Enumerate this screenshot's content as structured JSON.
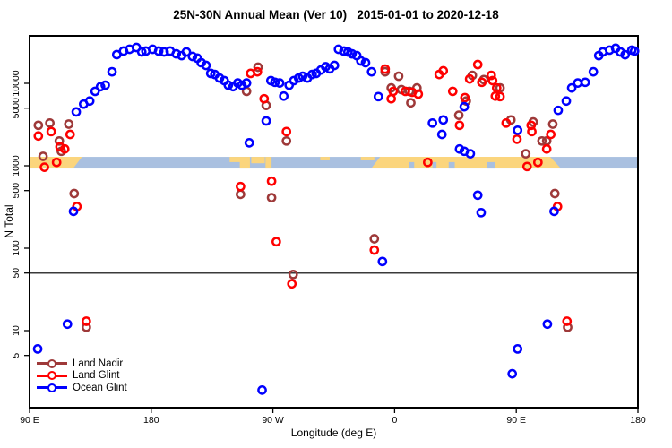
{
  "title": "25N-30N Annual Mean (Ver 10)   2015-01-01 to 2020-12-18",
  "axes": {
    "x": {
      "label": "Longitude (deg E)",
      "range_deg": [
        90,
        540
      ],
      "ticks": [
        {
          "deg": 90,
          "label": "90 E"
        },
        {
          "deg": 180,
          "label": "180"
        },
        {
          "deg": 270,
          "label": "90 W"
        },
        {
          "deg": 360,
          "label": "0"
        },
        {
          "deg": 450,
          "label": "90 E"
        },
        {
          "deg": 540,
          "label": "180"
        }
      ]
    },
    "y": {
      "label": "N Total",
      "scale": "log10",
      "ticks": [
        5,
        10,
        50,
        100,
        500,
        1000,
        5000,
        10000
      ],
      "range": [
        1.2,
        38000
      ]
    }
  },
  "reference_line": {
    "value": 50,
    "color": "#3a3a3a"
  },
  "land_ocean_strip": {
    "description": "map strip of land vs ocean along 25N-30N, centered near N=1090",
    "center_value": 1090,
    "ocean_color": "#a9c0e0",
    "land_color": "#fbd57d",
    "land_segments": [
      {
        "from": 90,
        "to": 125.5,
        "part": 1,
        "slant": "right"
      },
      {
        "from": 238,
        "to": 247,
        "part": 0.45,
        "slant": "none"
      },
      {
        "from": 245.5,
        "to": 253,
        "part": 1,
        "slant": "none"
      },
      {
        "from": 254,
        "to": 264,
        "part": 0.55,
        "slant": "none"
      },
      {
        "from": 264.5,
        "to": 269,
        "part": 1,
        "slant": "none"
      },
      {
        "from": 305,
        "to": 312,
        "part": 0.3,
        "slant": "none"
      },
      {
        "from": 335,
        "to": 345,
        "part": 0.3,
        "slant": "none"
      },
      {
        "from": 346,
        "to": 479,
        "part": 1,
        "slant": "both"
      }
    ],
    "ocean_notches": [
      {
        "from": 371,
        "to": 374.5
      },
      {
        "from": 388,
        "to": 391
      },
      {
        "from": 400,
        "to": 404.5
      },
      {
        "from": 428,
        "to": 434
      }
    ]
  },
  "chart_data": {
    "type": "scatter",
    "x_unit": "degrees along axis starting at 90E (wraps through 180, 90W, 0, 90E to 180)",
    "marker": "open-circle",
    "legend_position": "bottom-left",
    "series": [
      {
        "name": "Land Nadir",
        "color": "#9e3939",
        "points": [
          [
            96.5,
            3100
          ],
          [
            105,
            3300
          ],
          [
            112,
            2000
          ],
          [
            119,
            3200
          ],
          [
            100,
            1300
          ],
          [
            113.5,
            1500
          ],
          [
            123,
            460
          ],
          [
            259,
            15700
          ],
          [
            250.5,
            8000
          ],
          [
            265,
            5400
          ],
          [
            280,
            2000
          ],
          [
            345,
            130
          ],
          [
            285,
            48
          ],
          [
            246,
            450
          ],
          [
            269,
            410
          ],
          [
            353,
            13800
          ],
          [
            363,
            12200
          ],
          [
            357.5,
            8800
          ],
          [
            365,
            8400
          ],
          [
            371,
            8000
          ],
          [
            376.5,
            8800
          ],
          [
            372,
            5800
          ],
          [
            407.5,
            4100
          ],
          [
            413,
            6100
          ],
          [
            417.5,
            12500
          ],
          [
            426,
            11100
          ],
          [
            438,
            8800
          ],
          [
            446,
            3600
          ],
          [
            462.5,
            3400
          ],
          [
            469,
            2000
          ],
          [
            472.5,
            2000
          ],
          [
            477,
            3200
          ],
          [
            457,
            1400
          ],
          [
            478.5,
            460
          ],
          [
            488,
            11
          ],
          [
            132,
            11
          ]
        ]
      },
      {
        "name": "Land Glint",
        "color": "#ff0000",
        "points": [
          [
            96.5,
            2300
          ],
          [
            106,
            2600
          ],
          [
            112.5,
            1700
          ],
          [
            120,
            2400
          ],
          [
            101,
            960
          ],
          [
            110,
            1100
          ],
          [
            116,
            1600
          ],
          [
            125,
            320
          ],
          [
            253.5,
            13200
          ],
          [
            258.5,
            13800
          ],
          [
            263.5,
            6500
          ],
          [
            280,
            2600
          ],
          [
            272.5,
            120
          ],
          [
            284,
            37
          ],
          [
            246,
            560
          ],
          [
            269,
            650
          ],
          [
            345,
            95
          ],
          [
            353,
            14900
          ],
          [
            357.5,
            6500
          ],
          [
            359,
            8000
          ],
          [
            368,
            8000
          ],
          [
            373,
            7800
          ],
          [
            377.5,
            7400
          ],
          [
            384.5,
            1100
          ],
          [
            393,
            12800
          ],
          [
            396,
            14200
          ],
          [
            403,
            8000
          ],
          [
            408,
            3100
          ],
          [
            412,
            6700
          ],
          [
            415.5,
            11300
          ],
          [
            421.5,
            16900
          ],
          [
            424.5,
            10300
          ],
          [
            431.5,
            12500
          ],
          [
            432.5,
            10800
          ],
          [
            435.5,
            8800
          ],
          [
            434.5,
            7000
          ],
          [
            438,
            6900
          ],
          [
            442.5,
            3300
          ],
          [
            450.5,
            2100
          ],
          [
            458,
            980
          ],
          [
            461,
            3100
          ],
          [
            461.5,
            2600
          ],
          [
            466,
            1100
          ],
          [
            472.5,
            1600
          ],
          [
            475.5,
            2400
          ],
          [
            480.5,
            320
          ],
          [
            487.5,
            13
          ],
          [
            132,
            13
          ]
        ]
      },
      {
        "name": "Ocean Glint",
        "color": "#0000ff",
        "points": [
          [
            124.5,
            4500
          ],
          [
            130,
            5600
          ],
          [
            134.5,
            6100
          ],
          [
            138.5,
            8000
          ],
          [
            142.5,
            9100
          ],
          [
            146,
            9500
          ],
          [
            151,
            13800
          ],
          [
            154.5,
            22300
          ],
          [
            159.5,
            24600
          ],
          [
            164,
            25900
          ],
          [
            169,
            27200
          ],
          [
            173,
            24000
          ],
          [
            176,
            24600
          ],
          [
            181,
            25900
          ],
          [
            185.5,
            24600
          ],
          [
            189.5,
            24000
          ],
          [
            194,
            24600
          ],
          [
            198.5,
            22800
          ],
          [
            202.5,
            21700
          ],
          [
            206,
            24000
          ],
          [
            210.5,
            21200
          ],
          [
            214,
            20200
          ],
          [
            217,
            17800
          ],
          [
            220.5,
            16500
          ],
          [
            224,
            13200
          ],
          [
            227,
            12800
          ],
          [
            230.5,
            11600
          ],
          [
            234,
            10800
          ],
          [
            237,
            9500
          ],
          [
            240.5,
            9100
          ],
          [
            244,
            10100
          ],
          [
            247,
            9500
          ],
          [
            250.5,
            10100
          ],
          [
            252.5,
            1900
          ],
          [
            265,
            3500
          ],
          [
            268.5,
            10800
          ],
          [
            271.5,
            10300
          ],
          [
            275,
            10100
          ],
          [
            278,
            7000
          ],
          [
            282,
            9500
          ],
          [
            285.5,
            10800
          ],
          [
            289,
            11600
          ],
          [
            292,
            12200
          ],
          [
            295.5,
            11600
          ],
          [
            299,
            12800
          ],
          [
            302,
            13200
          ],
          [
            305.5,
            14500
          ],
          [
            309,
            15900
          ],
          [
            312,
            15000
          ],
          [
            315.5,
            16500
          ],
          [
            318.5,
            25900
          ],
          [
            322.5,
            24600
          ],
          [
            325.5,
            24000
          ],
          [
            328.5,
            22800
          ],
          [
            332,
            21700
          ],
          [
            335,
            18700
          ],
          [
            338.5,
            17800
          ],
          [
            343,
            13800
          ],
          [
            348,
            6900
          ],
          [
            351,
            69
          ],
          [
            388,
            3300
          ],
          [
            395,
            2400
          ],
          [
            396,
            3600
          ],
          [
            408,
            1600
          ],
          [
            411.5,
            5200
          ],
          [
            411.5,
            1500
          ],
          [
            416,
            1400
          ],
          [
            421.5,
            440
          ],
          [
            424,
            270
          ],
          [
            451,
            2700
          ],
          [
            451,
            6
          ],
          [
            447,
            3
          ],
          [
            473,
            12
          ],
          [
            481,
            4700
          ],
          [
            487,
            6100
          ],
          [
            491,
            8800
          ],
          [
            495.5,
            10100
          ],
          [
            501,
            10300
          ],
          [
            507,
            13800
          ],
          [
            511,
            21700
          ],
          [
            514,
            24000
          ],
          [
            519,
            25300
          ],
          [
            523.5,
            26600
          ],
          [
            527,
            24000
          ],
          [
            530.5,
            22200
          ],
          [
            535.5,
            25300
          ],
          [
            537.5,
            24600
          ],
          [
            96,
            6
          ],
          [
            118,
            12
          ],
          [
            122.5,
            280
          ],
          [
            478,
            280
          ],
          [
            262,
            1.9
          ]
        ]
      }
    ]
  }
}
